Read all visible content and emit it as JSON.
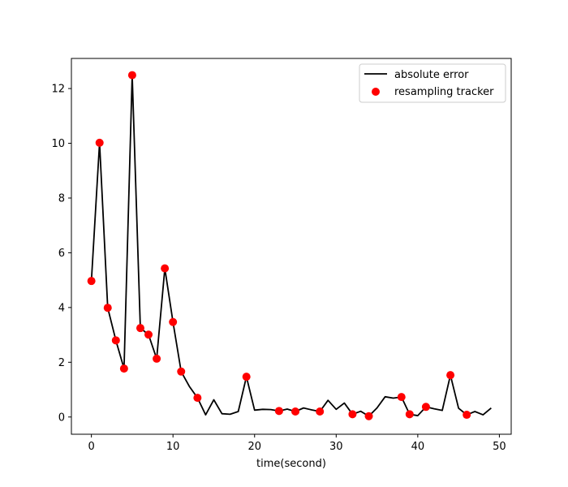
{
  "chart_data": {
    "type": "line",
    "title": "",
    "xlabel": "time(second)",
    "ylabel": "",
    "xlim": [
      -2.45,
      51.45
    ],
    "ylim": [
      -0.63,
      13.1
    ],
    "xticks": [
      0,
      10,
      20,
      30,
      40,
      50
    ],
    "yticks": [
      0,
      2,
      4,
      6,
      8,
      10,
      12
    ],
    "grid": false,
    "legend_position": "top-right",
    "colors": {
      "line": "#000000",
      "marker": "#ff0000",
      "axes": "#000000"
    },
    "series": [
      {
        "name": "absolute error",
        "type": "line",
        "x": [
          0,
          1,
          2,
          3,
          4,
          5,
          6,
          7,
          8,
          9,
          10,
          11,
          12,
          13,
          14,
          15,
          16,
          17,
          18,
          19,
          20,
          21,
          22,
          23,
          24,
          25,
          26,
          27,
          28,
          29,
          30,
          31,
          32,
          33,
          34,
          35,
          36,
          37,
          38,
          39,
          40,
          41,
          42,
          43,
          44,
          45,
          46,
          47,
          48,
          49
        ],
        "y": [
          4.97,
          10.02,
          3.99,
          2.8,
          1.77,
          12.49,
          3.25,
          3.01,
          2.13,
          5.43,
          3.47,
          1.66,
          1.12,
          0.7,
          0.08,
          0.63,
          0.12,
          0.1,
          0.2,
          1.47,
          0.25,
          0.28,
          0.27,
          0.22,
          0.29,
          0.2,
          0.33,
          0.26,
          0.2,
          0.61,
          0.28,
          0.51,
          0.1,
          0.21,
          0.03,
          0.33,
          0.74,
          0.69,
          0.73,
          0.1,
          0.05,
          0.37,
          0.3,
          0.24,
          1.53,
          0.32,
          0.08,
          0.2,
          0.08,
          0.33
        ]
      },
      {
        "name": "resampling tracker",
        "type": "scatter",
        "x": [
          0,
          1,
          2,
          3,
          4,
          5,
          6,
          7,
          8,
          9,
          10,
          11,
          13,
          19,
          23,
          25,
          28,
          32,
          34,
          38,
          39,
          41,
          44,
          46
        ],
        "y": [
          4.97,
          10.02,
          3.99,
          2.8,
          1.77,
          12.49,
          3.25,
          3.01,
          2.13,
          5.43,
          3.47,
          1.66,
          0.7,
          1.47,
          0.22,
          0.2,
          0.2,
          0.1,
          0.03,
          0.73,
          0.1,
          0.37,
          1.53,
          0.08
        ]
      }
    ]
  }
}
